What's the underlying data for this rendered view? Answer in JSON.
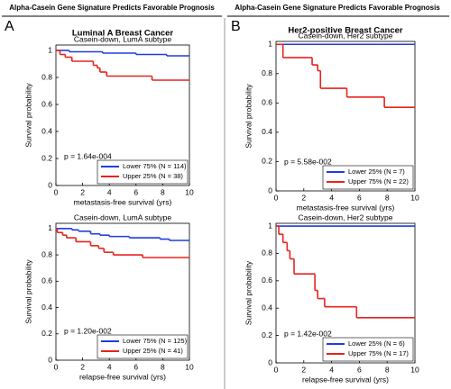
{
  "panels": [
    {
      "header": "Alpha-Casein Gene Signature Predicts Favorable Prognosis",
      "letter": "A",
      "title": "Luminal A Breast Cancer"
    },
    {
      "header": "Alpha-Casein Gene Signature Predicts Favorable Prognosis",
      "letter": "B",
      "title": "Her2-positive Breast Cancer"
    }
  ],
  "chart_data": [
    {
      "type": "step",
      "title": "Casein-down, LumA subtype",
      "xlabel": "metastasis-free survival (yrs)",
      "ylabel": "Survival probability",
      "annotation": "p = 1.64e-004",
      "legend": "lower right",
      "xlim": [
        0,
        10
      ],
      "xticks": [
        0,
        2,
        4,
        6,
        8,
        10
      ],
      "ylim": [
        0,
        1.04
      ],
      "yticks": [
        0,
        0.2,
        0.4,
        0.6,
        0.8,
        1
      ],
      "series": [
        {
          "name": "Lower 75% (N = 114)",
          "color": "#1f3de0",
          "x": [
            0,
            1.0,
            3.5,
            6.0,
            8.3,
            10
          ],
          "values": [
            1,
            0.99,
            0.98,
            0.97,
            0.96,
            0.96
          ]
        },
        {
          "name": "Upper 25% (N = 38)",
          "color": "#e8231e",
          "x": [
            0,
            0.3,
            0.7,
            1.2,
            2.8,
            3.1,
            3.3,
            3.8,
            7.2,
            10
          ],
          "values": [
            1,
            0.97,
            0.95,
            0.92,
            0.89,
            0.87,
            0.84,
            0.81,
            0.78,
            0.78
          ]
        }
      ]
    },
    {
      "type": "step",
      "title": "Casein-down, LumA subtype",
      "xlabel": "relapse-free survival (yrs)",
      "ylabel": "Survival probability",
      "annotation": "p = 1.20e-002",
      "legend": "lower right",
      "xlim": [
        0,
        10
      ],
      "xticks": [
        0,
        2,
        4,
        6,
        8,
        10
      ],
      "ylim": [
        0,
        1.04
      ],
      "yticks": [
        0,
        0.2,
        0.4,
        0.6,
        0.8,
        1
      ],
      "series": [
        {
          "name": "Lower 75% (N = 125)",
          "color": "#1f3de0",
          "x": [
            0,
            1.2,
            1.7,
            2.6,
            3.3,
            4.0,
            5.5,
            7.8,
            8.5,
            10
          ],
          "values": [
            1,
            0.99,
            0.98,
            0.96,
            0.95,
            0.94,
            0.93,
            0.92,
            0.91,
            0.91
          ]
        },
        {
          "name": "Upper 25% (N = 41)",
          "color": "#e8231e",
          "x": [
            0,
            0.1,
            0.5,
            0.8,
            1.5,
            2.6,
            3.2,
            3.6,
            4.3,
            6.5,
            10
          ],
          "values": [
            1,
            0.97,
            0.95,
            0.93,
            0.9,
            0.87,
            0.85,
            0.82,
            0.8,
            0.78,
            0.78
          ]
        }
      ]
    },
    {
      "type": "step",
      "title": "Casein-down, Her2 subtype",
      "xlabel": "metastasis-free survival (yrs)",
      "ylabel": "Survival probability",
      "annotation": "p = 5.58e-002",
      "legend": "lower right",
      "xlim": [
        0,
        10
      ],
      "xticks": [
        0,
        2,
        4,
        6,
        8,
        10
      ],
      "ylim": [
        0,
        1.02
      ],
      "yticks": [
        0,
        0.2,
        0.4,
        0.6,
        0.8,
        1
      ],
      "series": [
        {
          "name": "Lower 25% (N = 7)",
          "color": "#1f3de0",
          "x": [
            0,
            10
          ],
          "values": [
            1,
            1
          ]
        },
        {
          "name": "Upper 75% (N = 22)",
          "color": "#e8231e",
          "x": [
            0,
            0.5,
            2.6,
            3.0,
            3.2,
            5.1,
            7.8,
            10
          ],
          "values": [
            1,
            0.91,
            0.86,
            0.82,
            0.7,
            0.64,
            0.57,
            0.57
          ]
        }
      ]
    },
    {
      "type": "step",
      "title": "Casein-down, Her2 subtype",
      "xlabel": "relapse-free survival (yrs)",
      "ylabel": "Survival probability",
      "annotation": "p = 1.42e-002",
      "legend": "lower right",
      "xlim": [
        0,
        10
      ],
      "xticks": [
        0,
        2,
        4,
        6,
        8,
        10
      ],
      "ylim": [
        0,
        1.02
      ],
      "yticks": [
        0,
        0.2,
        0.4,
        0.6,
        0.8,
        1
      ],
      "series": [
        {
          "name": "Lower 25% (N = 6)",
          "color": "#1f3de0",
          "x": [
            0,
            10
          ],
          "values": [
            1,
            1
          ]
        },
        {
          "name": "Upper 75% (N = 17)",
          "color": "#e8231e",
          "x": [
            0,
            0.2,
            0.5,
            0.8,
            1.0,
            1.3,
            2.8,
            3.0,
            3.5,
            5.8,
            10
          ],
          "values": [
            1,
            0.94,
            0.88,
            0.82,
            0.76,
            0.65,
            0.53,
            0.47,
            0.41,
            0.33,
            0.33
          ]
        }
      ]
    }
  ]
}
